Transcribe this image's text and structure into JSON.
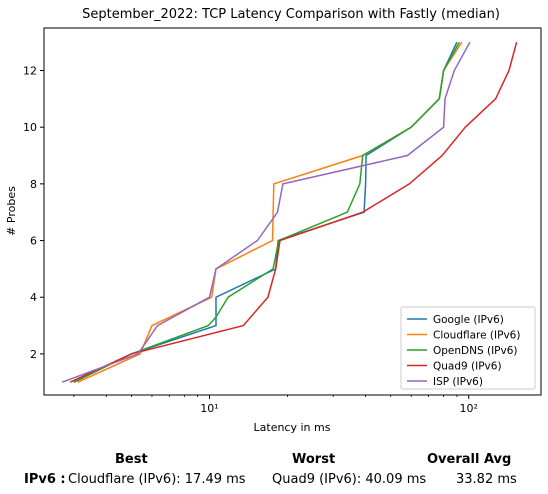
{
  "chart_data": {
    "type": "line",
    "title": "September_2022: TCP Latency Comparison with Fastly (median)",
    "xlabel": "Latency in ms",
    "ylabel": "# Probes",
    "xscale": "log",
    "xlim": [
      2.3,
      190
    ],
    "ylim": [
      0.55,
      13.5
    ],
    "x_ticks": [
      10,
      100
    ],
    "x_tick_labels": [
      "10¹",
      "10²"
    ],
    "y_ticks": [
      2,
      4,
      6,
      8,
      10,
      12
    ],
    "y_tick_labels": [
      "2",
      "4",
      "6",
      "8",
      "10",
      "12"
    ],
    "grid": false,
    "legend_position": "lower-right",
    "series": [
      {
        "name": "Google (IPv6)",
        "color": "#1f77b4",
        "x": [
          3.0,
          5.0,
          10.6,
          10.6,
          18.0,
          18.4,
          39.5,
          40.0,
          40.2,
          60.0,
          77.0,
          80.0,
          90.0
        ],
        "y": [
          1,
          2,
          3,
          4,
          5,
          6,
          7,
          8,
          9,
          10,
          11,
          12,
          13
        ]
      },
      {
        "name": "Cloudflare (IPv6)",
        "color": "#ff7f0e",
        "x": [
          3.1,
          5.4,
          6.0,
          10.2,
          10.6,
          17.5,
          17.7,
          39.0,
          60.0,
          77.0,
          80.0,
          94.0
        ],
        "y": [
          1,
          2,
          3,
          4,
          5,
          6,
          8,
          9,
          10,
          11,
          12,
          13
        ]
      },
      {
        "name": "OpenDNS (IPv6)",
        "color": "#2ca02c",
        "x": [
          3.0,
          5.0,
          9.9,
          10.6,
          11.8,
          17.6,
          18.5,
          34.0,
          38.0,
          39.0,
          60.0,
          77.0,
          80.0,
          92.0
        ],
        "y": [
          1,
          2,
          3,
          3.3,
          4,
          5,
          6,
          7,
          8,
          9,
          10,
          11,
          12,
          13
        ]
      },
      {
        "name": "Quad9 (IPv6)",
        "color": "#d62728",
        "x": [
          2.9,
          5.0,
          13.5,
          16.8,
          18.0,
          18.7,
          39.0,
          59.0,
          79.0,
          97.0,
          127.0,
          143.0,
          153.0
        ],
        "y": [
          1,
          2,
          3,
          4,
          5,
          6,
          7,
          8,
          9,
          10,
          11,
          12,
          13
        ]
      },
      {
        "name": "ISP (IPv6)",
        "color": "#9467bd",
        "x": [
          2.7,
          5.3,
          6.3,
          10.0,
          10.6,
          15.3,
          18.3,
          19.2,
          58.0,
          80.0,
          81.0,
          88.0,
          101.0
        ],
        "y": [
          1,
          2,
          3,
          4,
          5,
          6,
          7,
          8,
          9,
          10,
          11,
          12,
          13
        ]
      }
    ]
  },
  "footer": {
    "headers": {
      "best": "Best",
      "worst": "Worst",
      "avg": "Overall Avg"
    },
    "row_label": "IPv6 :",
    "best": "Cloudflare (IPv6): 17.49 ms",
    "worst": "Quad9 (IPv6): 40.09 ms",
    "avg": "33.82 ms"
  }
}
